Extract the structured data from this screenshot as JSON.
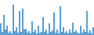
{
  "chart_data": {
    "type": "bar",
    "categories": [
      null,
      null,
      null,
      null,
      null,
      null,
      null,
      null,
      null,
      null,
      null,
      null,
      null,
      null,
      null,
      null,
      null,
      null,
      null,
      null,
      null,
      null,
      null,
      null,
      null,
      null,
      null,
      null,
      null,
      null,
      null,
      null,
      null,
      null,
      null,
      null,
      null,
      null,
      null,
      null,
      null,
      null,
      null,
      null,
      null,
      null,
      null,
      null,
      null,
      null,
      null,
      null,
      null,
      null,
      null,
      null,
      null,
      null,
      null,
      null
    ],
    "values": [
      1.8,
      0.5,
      3.2,
      0.8,
      1.5,
      0.4,
      0.6,
      0.3,
      4.8,
      0.6,
      1.2,
      0.4,
      3.8,
      0.5,
      4.2,
      0.8,
      1.0,
      0.4,
      0.6,
      0.3,
      2.2,
      0.5,
      0.8,
      0.3,
      1.5,
      0.4,
      0.5,
      2.8,
      0.5,
      0.9,
      0.3,
      1.8,
      0.5,
      0.7,
      3.5,
      0.4,
      0.8,
      0.3,
      4.5,
      0.5,
      1.2,
      0.4,
      0.6,
      0.3,
      0.8,
      0.4,
      2.0,
      0.5,
      0.7,
      0.4,
      0.3,
      1.5,
      0.4,
      0.8,
      0.5,
      3.8,
      0.4,
      0.7,
      0.3,
      1.2
    ],
    "color": "#5b9fd4",
    "ylim": [
      0,
      5.5
    ],
    "grid": false,
    "tick_labels": false
  }
}
